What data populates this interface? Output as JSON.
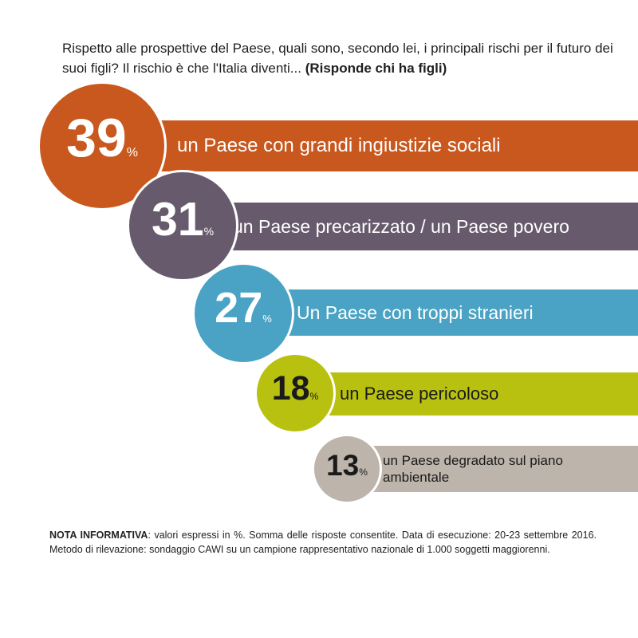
{
  "question": {
    "text": "Rispetto alle prospettive del Paese, quali sono, secondo lei, i principali rischi per il futuro dei suoi figli? Il rischio è che l'Italia diventi...",
    "bold": "(Risponde chi ha figli)"
  },
  "chart_data": {
    "type": "bar",
    "categories": [
      "un Paese con grandi ingiustizie sociali",
      "un Paese precarizzato / un Paese povero",
      "Un Paese con troppi stranieri",
      "un Paese pericoloso",
      "un Paese degradato sul piano ambientale"
    ],
    "values": [
      39,
      31,
      27,
      18,
      13
    ],
    "value_suffix": "%",
    "colors": [
      "#c9581e",
      "#675a6c",
      "#4aa3c4",
      "#b8c10f",
      "#bdb4ab"
    ],
    "value_text_colors": [
      "#ffffff",
      "#ffffff",
      "#ffffff",
      "#1a1a1a",
      "#1a1a1a"
    ],
    "label_colors": [
      "#ffffff",
      "#ffffff",
      "#ffffff",
      "#1a1a1a",
      "#1a1a1a"
    ],
    "label_lines": [
      [
        "un Paese con grandi ingiustizie sociali"
      ],
      [
        "un Paese precarizzato / un Paese povero"
      ],
      [
        "Un Paese con troppi stranieri"
      ],
      [
        "un Paese pericoloso"
      ],
      [
        "un Paese degradato sul piano",
        "ambientale"
      ]
    ]
  },
  "note": {
    "label": "NOTA INFORMATIVA",
    "text": ": valori espressi in %. Somma delle risposte consentite. Data di esecuzione: 20-23 settembre 2016. Metodo di rilevazione: sondaggio CAWI su un campione rappresentativo nazionale di 1.000 soggetti maggiorenni."
  }
}
